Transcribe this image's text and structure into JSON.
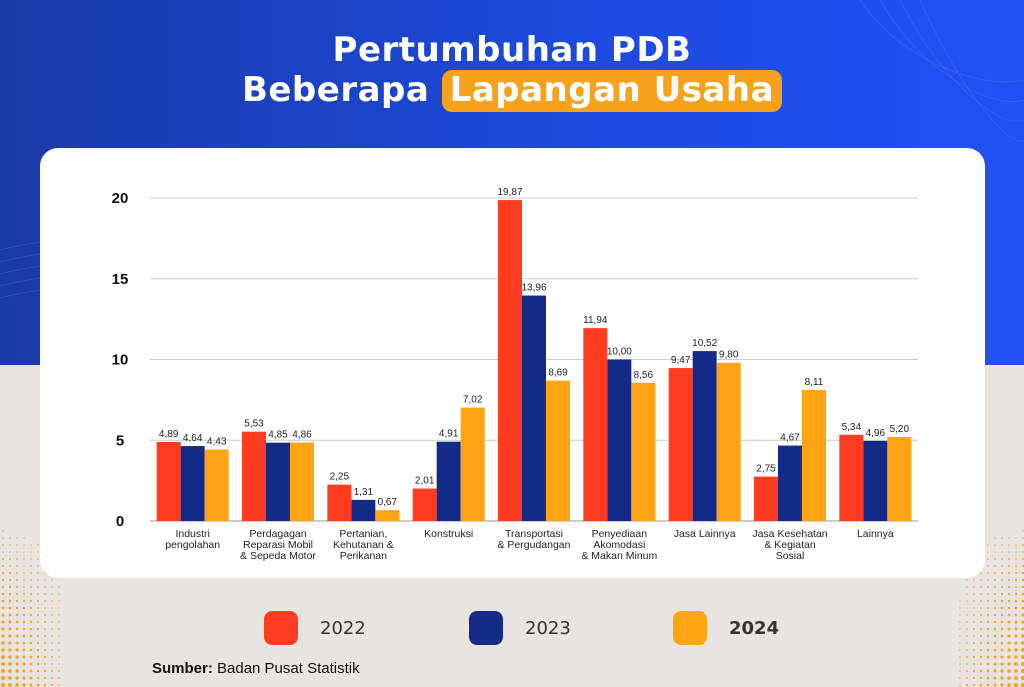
{
  "title": {
    "line1": "Pertumbuhan PDB",
    "line2_prefix": "Beberapa",
    "line2_highlight": "Lapangan Usaha"
  },
  "colors": {
    "s2022": "#ff3b22",
    "s2023": "#132b86",
    "s2024": "#ffa415",
    "header_bg": "#1d4be0",
    "highlight": "#f6a21d"
  },
  "legend": [
    {
      "label": "2022",
      "bold": false
    },
    {
      "label": "2023",
      "bold": false
    },
    {
      "label": "2024",
      "bold": true
    }
  ],
  "source": {
    "prefix": "Sumber:",
    "text": " Badan Pusat Statistik"
  },
  "chart_data": {
    "type": "bar",
    "categories": [
      [
        "Industri",
        "pengolahan"
      ],
      [
        "Perdagagan",
        "Reparasi Mobil",
        "& Sepeda Motor"
      ],
      [
        "Pertanian,",
        "Kehutanan &",
        "Perikanan"
      ],
      [
        "Konstruksi"
      ],
      [
        "Transportasi",
        "& Pergudangan"
      ],
      [
        "Penyediaan",
        "Akomodasi",
        "& Makan Minum"
      ],
      [
        "Jasa Lainnya"
      ],
      [
        "Jasa Kesehatan",
        "& Kegiatan",
        "Sosial"
      ],
      [
        "Lainnya"
      ]
    ],
    "series": [
      {
        "name": "2022",
        "values": [
          4.89,
          5.53,
          2.25,
          2.01,
          19.87,
          11.94,
          9.47,
          2.75,
          5.34
        ],
        "labels": [
          "4,89",
          "5,53",
          "2,25",
          "2,01",
          "19,87",
          "11,94",
          "9,47",
          "2,75",
          "5,34"
        ]
      },
      {
        "name": "2023",
        "values": [
          4.64,
          4.85,
          1.31,
          4.91,
          13.96,
          10.0,
          10.52,
          4.67,
          4.96
        ],
        "labels": [
          "4,64",
          "4,85",
          "1,31",
          "4,91",
          "13,96",
          "10,00",
          "10,52",
          "4,67",
          "4,96"
        ]
      },
      {
        "name": "2024",
        "values": [
          4.43,
          4.86,
          0.67,
          7.02,
          8.69,
          8.56,
          9.8,
          8.11,
          5.2
        ],
        "labels": [
          "4,43",
          "4,86",
          "0,67",
          "7,02",
          "8,69",
          "8,56",
          "9,80",
          "8,11",
          "5,20"
        ]
      }
    ],
    "yticks": [
      "0",
      "5",
      "10",
      "15",
      "20"
    ],
    "ylim": [
      0,
      20
    ],
    "grid": true
  }
}
